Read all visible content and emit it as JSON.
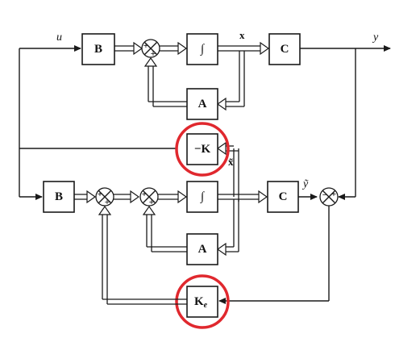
{
  "blocks": {
    "b_top": "B",
    "integrator_top": "∫",
    "c_top": "C",
    "a_top": "A",
    "neg_k": "−K",
    "b_bottom": "B",
    "integrator_bottom": "∫",
    "c_bottom": "C",
    "a_bottom": "A",
    "ke_main": "K",
    "ke_sub": "e"
  },
  "signals": {
    "u": "u",
    "x": "x",
    "y": "y",
    "x_tilde": "x̃",
    "y_tilde": "ỹ"
  },
  "signs": {
    "plus": "+",
    "minus": "−"
  },
  "highlight_color": "#e0282e"
}
